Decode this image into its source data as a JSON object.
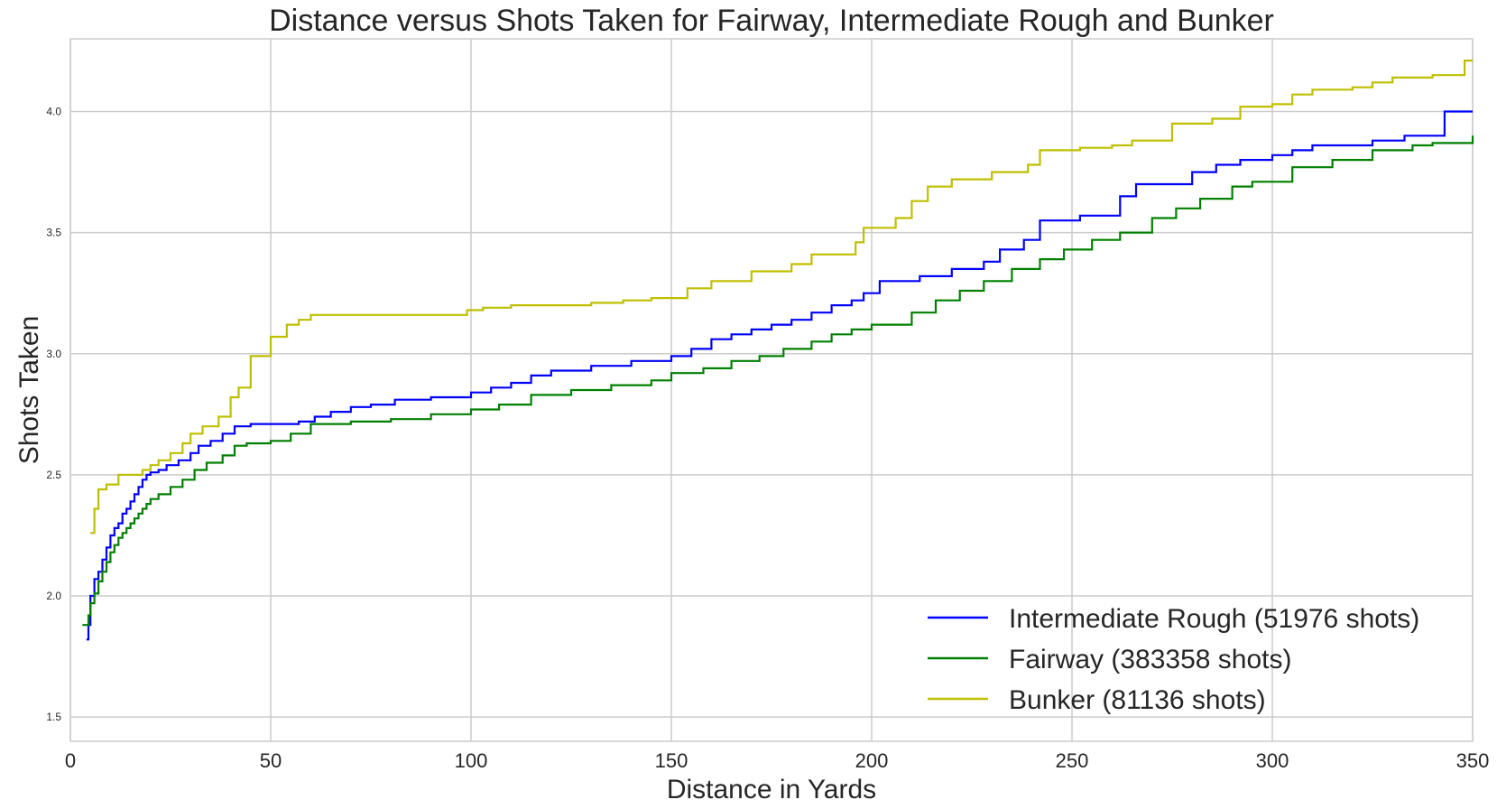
{
  "chart_data": {
    "type": "line",
    "title": "Distance versus Shots Taken for Fairway, Intermediate Rough and Bunker",
    "xlabel": "Distance in Yards",
    "ylabel": "Shots Taken",
    "xlim": [
      0,
      350
    ],
    "ylim": [
      1.4,
      4.3
    ],
    "xticks": [
      0,
      50,
      100,
      150,
      200,
      250,
      300,
      350
    ],
    "xtick_labels": [
      "0",
      "50",
      "100",
      "150",
      "200",
      "250",
      "300",
      "350"
    ],
    "yticks": [
      1.5,
      2.0,
      2.5,
      3.0,
      3.5,
      4.0
    ],
    "ytick_labels": [
      "1.5",
      "2.0",
      "2.5",
      "3.0",
      "3.5",
      "4.0"
    ],
    "grid": true,
    "legend_position": "lower-right",
    "step": true,
    "series": [
      {
        "name": "Intermediate Rough (51976 shots)",
        "color": "#0000ff",
        "x": [
          4,
          4.5,
          5,
          6,
          7,
          8,
          9,
          10,
          11,
          12,
          13,
          14,
          15,
          16,
          17,
          18,
          19,
          20,
          22,
          24,
          27,
          30,
          32,
          35,
          38,
          41,
          45,
          50,
          57,
          61,
          65,
          70,
          75,
          81,
          90,
          100,
          105,
          110,
          115,
          120,
          130,
          140,
          150,
          155,
          160,
          165,
          170,
          175,
          180,
          185,
          190,
          195,
          198,
          202,
          212,
          220,
          228,
          232,
          238,
          242,
          252,
          262,
          266,
          272,
          280,
          286,
          292,
          300,
          305,
          310,
          320,
          325,
          333,
          343,
          350
        ],
        "y": [
          1.82,
          1.88,
          2.0,
          2.07,
          2.1,
          2.15,
          2.2,
          2.25,
          2.28,
          2.3,
          2.34,
          2.36,
          2.39,
          2.42,
          2.45,
          2.48,
          2.5,
          2.51,
          2.52,
          2.54,
          2.56,
          2.59,
          2.62,
          2.64,
          2.67,
          2.7,
          2.71,
          2.71,
          2.72,
          2.74,
          2.76,
          2.78,
          2.79,
          2.81,
          2.82,
          2.84,
          2.86,
          2.88,
          2.91,
          2.93,
          2.95,
          2.97,
          2.99,
          3.02,
          3.06,
          3.08,
          3.1,
          3.12,
          3.14,
          3.17,
          3.2,
          3.22,
          3.25,
          3.3,
          3.32,
          3.35,
          3.38,
          3.43,
          3.47,
          3.55,
          3.57,
          3.65,
          3.7,
          3.7,
          3.75,
          3.78,
          3.8,
          3.82,
          3.84,
          3.86,
          3.86,
          3.88,
          3.9,
          4.0,
          4.0
        ]
      },
      {
        "name": "Fairway (383358 shots)",
        "color": "#008000",
        "x": [
          3,
          4.5,
          5,
          6,
          7,
          8,
          9,
          10,
          11,
          12,
          13,
          14,
          15,
          16,
          17,
          18,
          19,
          20,
          22,
          25,
          28,
          31,
          34,
          38,
          41,
          44,
          50,
          55,
          60,
          70,
          80,
          90,
          100,
          107,
          115,
          125,
          135,
          145,
          150,
          158,
          165,
          172,
          178,
          185,
          190,
          195,
          200,
          210,
          216,
          222,
          228,
          235,
          242,
          248,
          255,
          262,
          270,
          276,
          282,
          290,
          295,
          305,
          315,
          325,
          335,
          340,
          350
        ],
        "y": [
          1.88,
          1.92,
          1.97,
          2.01,
          2.06,
          2.1,
          2.14,
          2.18,
          2.21,
          2.24,
          2.26,
          2.28,
          2.3,
          2.32,
          2.34,
          2.36,
          2.38,
          2.4,
          2.42,
          2.45,
          2.48,
          2.52,
          2.55,
          2.58,
          2.62,
          2.63,
          2.64,
          2.67,
          2.71,
          2.72,
          2.73,
          2.75,
          2.77,
          2.79,
          2.83,
          2.85,
          2.87,
          2.89,
          2.92,
          2.94,
          2.97,
          2.99,
          3.02,
          3.05,
          3.08,
          3.1,
          3.12,
          3.17,
          3.22,
          3.26,
          3.3,
          3.35,
          3.39,
          3.43,
          3.47,
          3.5,
          3.56,
          3.6,
          3.64,
          3.69,
          3.71,
          3.77,
          3.8,
          3.84,
          3.86,
          3.87,
          3.9
        ]
      },
      {
        "name": "Bunker (81136 shots)",
        "color": "#bfbf00",
        "x": [
          5,
          6,
          7,
          9,
          12,
          15,
          18,
          20,
          22,
          25,
          28,
          30,
          33,
          37,
          40,
          42,
          45,
          50,
          54,
          57,
          60,
          70,
          80,
          90,
          99,
          103,
          110,
          120,
          130,
          138,
          145,
          154,
          160,
          170,
          180,
          185,
          190,
          196,
          198,
          206,
          210,
          214,
          220,
          230,
          239,
          242,
          246,
          252,
          260,
          265,
          275,
          285,
          292,
          300,
          305,
          310,
          320,
          325,
          330,
          340,
          348,
          350
        ],
        "y": [
          2.26,
          2.36,
          2.44,
          2.46,
          2.5,
          2.5,
          2.52,
          2.54,
          2.56,
          2.59,
          2.63,
          2.67,
          2.7,
          2.74,
          2.82,
          2.86,
          2.99,
          3.07,
          3.12,
          3.14,
          3.16,
          3.16,
          3.16,
          3.16,
          3.18,
          3.19,
          3.2,
          3.2,
          3.21,
          3.22,
          3.23,
          3.27,
          3.3,
          3.34,
          3.37,
          3.41,
          3.41,
          3.46,
          3.52,
          3.56,
          3.63,
          3.69,
          3.72,
          3.75,
          3.78,
          3.84,
          3.84,
          3.85,
          3.86,
          3.88,
          3.95,
          3.97,
          4.02,
          4.03,
          4.07,
          4.09,
          4.1,
          4.12,
          4.14,
          4.15,
          4.21,
          4.21
        ]
      }
    ]
  }
}
